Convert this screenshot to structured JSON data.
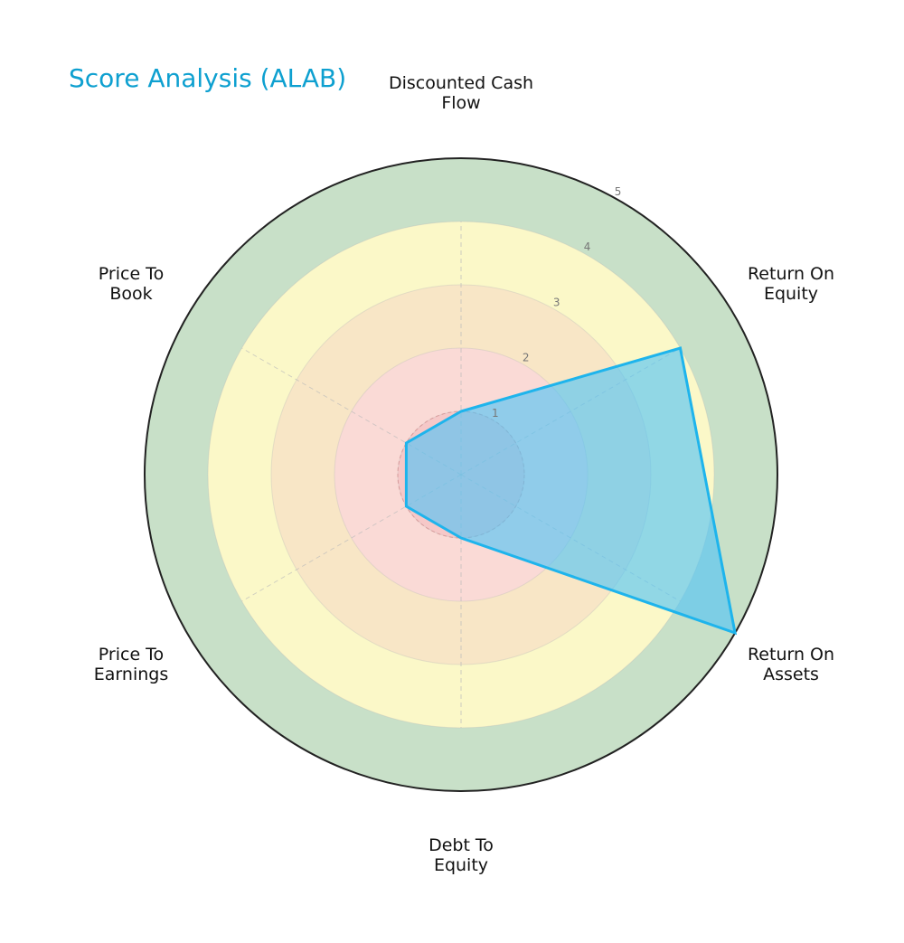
{
  "title": "Score Analysis (ALAB)",
  "colors": {
    "title": "#0ea0d0",
    "ring_5": "#c8e0c8",
    "ring_4": "#fbf8c8",
    "ring_3": "#f8e6c6",
    "ring_2": "#fadad6",
    "ring_1": "#f6c8c8",
    "series_fill": "#4fc3f7",
    "series_stroke": "#1eb4ec",
    "outer_border": "#222222",
    "grid": "#bbbbbb",
    "tick_label": "#777777"
  },
  "labels": {
    "dcf": "Discounted Cash\nFlow",
    "roe": "Return On\nEquity",
    "roa": "Return On\nAssets",
    "de": "Debt To\nEquity",
    "pe": "Price To\nEarnings",
    "pb": "Price To\nBook"
  },
  "ticks": [
    "1",
    "2",
    "3",
    "4",
    "5"
  ],
  "chart_data": {
    "type": "radar",
    "title": "Score Analysis (ALAB)",
    "categories": [
      "Discounted Cash Flow",
      "Return On Equity",
      "Return On Assets",
      "Debt To Equity",
      "Price To Earnings",
      "Price To Book"
    ],
    "series": [
      {
        "name": "ALAB",
        "values": [
          1,
          4,
          5,
          1,
          1,
          1
        ]
      }
    ],
    "rlim": [
      0,
      5
    ],
    "rticks": [
      1,
      2,
      3,
      4,
      5
    ],
    "grid": true,
    "legend": "none",
    "background_bands": [
      {
        "range": [
          0,
          1
        ],
        "color": "#f6c8c8"
      },
      {
        "range": [
          1,
          2
        ],
        "color": "#fadad6"
      },
      {
        "range": [
          2,
          3
        ],
        "color": "#f8e6c6"
      },
      {
        "range": [
          3,
          4
        ],
        "color": "#fbf8c8"
      },
      {
        "range": [
          4,
          5
        ],
        "color": "#c8e0c8"
      }
    ]
  }
}
